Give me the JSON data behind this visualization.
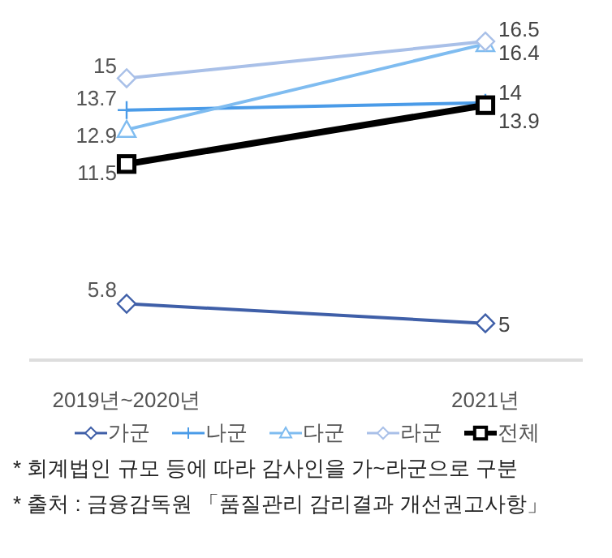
{
  "chart_data": {
    "type": "line",
    "categories": [
      "2019년~2020년",
      "2021년"
    ],
    "series": [
      {
        "name": "가군",
        "color": "#3f5fa8",
        "values": [
          5.8,
          5
        ],
        "marker": "diamond"
      },
      {
        "name": "나군",
        "color": "#4a9be8",
        "values": [
          13.7,
          14
        ],
        "marker": "cross"
      },
      {
        "name": "다군",
        "color": "#7fbcf0",
        "values": [
          12.9,
          16.4
        ],
        "marker": "triangle"
      },
      {
        "name": "라군",
        "color": "#a9c0e8",
        "values": [
          15,
          16.5
        ],
        "marker": "diamond"
      },
      {
        "name": "전체",
        "color": "#000000",
        "values": [
          11.5,
          13.9
        ],
        "marker": "square"
      }
    ],
    "data_labels": true,
    "grid": false,
    "legend": "bottom",
    "annotations": [
      "* 회계법인 규모 등에 따라 감사인을 가~라군으로 구분",
      "* 출처 : 금융감독원 「품질관리 감리결과 개선권고사항」"
    ]
  }
}
